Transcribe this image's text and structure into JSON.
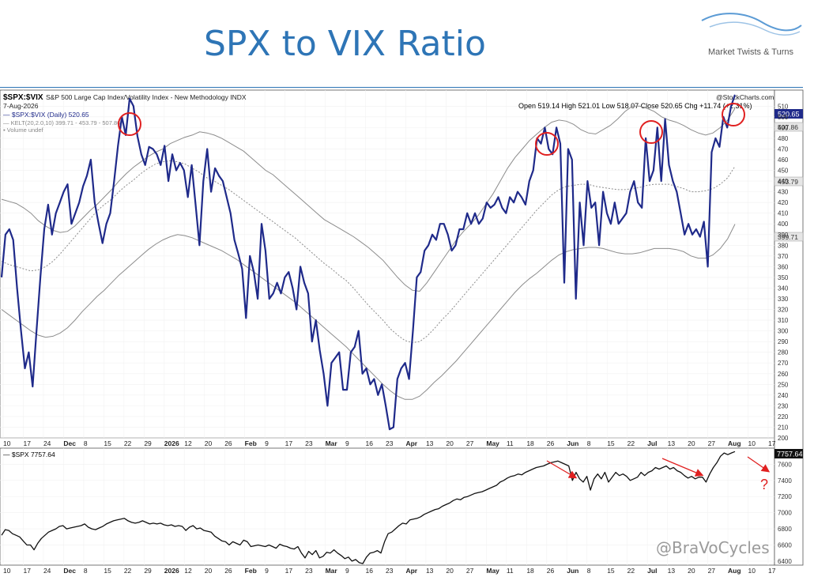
{
  "title": "SPX to VIX Ratio",
  "brand": "Market Twists & Turns",
  "watermark": "@BraVoCycles",
  "stockcharts": "@StockCharts.com",
  "top_panel": {
    "symbol": "$SPX:$VIX",
    "description": "S&P 500 Large Cap Index/Volatility Index - New Methodology INDX",
    "date": "7-Aug-2026",
    "ohlc": "Open 519.14  High 521.01  Low 518.07  Close 520.65  Chg +11.74 (+2.31%)",
    "legend": [
      "— $SPX:$VIX (Daily) 520.65",
      "— KELT(20,2.0,10) 399.71 - 453.79 - 507.86",
      "▪ Volume undef"
    ],
    "last_badge": "520.65",
    "upper_badge": "507.86",
    "mid_badge": "453.79",
    "lower_badge": "399.71",
    "y_ticks": [
      "200",
      "210",
      "220",
      "230",
      "240",
      "250",
      "260",
      "270",
      "280",
      "290",
      "300",
      "310",
      "320",
      "330",
      "340",
      "350",
      "360",
      "370",
      "380",
      "390",
      "400",
      "410",
      "420",
      "430",
      "440",
      "450",
      "460",
      "470",
      "480",
      "490",
      "500",
      "510"
    ]
  },
  "bottom_panel": {
    "legend": "— $SPX 7757.64",
    "last_badge": "7757.64",
    "y_ticks": [
      "6400",
      "6600",
      "6800",
      "7000",
      "7200",
      "7400",
      "7600"
    ],
    "question_mark": "?"
  },
  "x_ticks": [
    "10",
    "17",
    "24",
    "Dec",
    "8",
    "15",
    "22",
    "29",
    "2026",
    "12",
    "20",
    "26",
    "Feb",
    "9",
    "17",
    "23",
    "Mar",
    "9",
    "16",
    "23",
    "Apr",
    "13",
    "20",
    "27",
    "May",
    "11",
    "18",
    "26",
    "Jun",
    "8",
    "15",
    "22",
    "Jul",
    "13",
    "20",
    "27",
    "Aug",
    "10",
    "17"
  ],
  "x_ticks_bottom": [
    "10",
    "17",
    "24",
    "Dec",
    "8",
    "15",
    "22",
    "29",
    "2026",
    "12",
    "20",
    "26",
    "Feb",
    "9",
    "17",
    "23",
    "Mar",
    "9",
    "16",
    "23",
    "Apr",
    "13",
    "20",
    "27",
    "May",
    "11",
    "18",
    "26",
    "Jun",
    "8",
    "15",
    "22",
    "Jul",
    "13",
    "20",
    "27",
    "Aug",
    "10",
    "17"
  ],
  "colors": {
    "line": "#1f2a8a",
    "band": "#8c8c8c",
    "circle": "#e02020",
    "arrow": "#e02020",
    "title": "#2e75b6"
  },
  "chart_data": [
    {
      "type": "line",
      "title": "$SPX:$VIX",
      "ylim": [
        200,
        525
      ],
      "series": [
        {
          "name": "$SPX:$VIX (Daily)",
          "values": [
            350,
            390,
            395,
            385,
            340,
            300,
            265,
            280,
            248,
            300,
            350,
            395,
            418,
            390,
            410,
            420,
            430,
            437,
            400,
            410,
            420,
            435,
            445,
            460,
            420,
            400,
            382,
            400,
            410,
            440,
            473,
            500,
            483,
            517,
            510,
            482,
            465,
            455,
            472,
            470,
            465,
            455,
            473,
            440,
            465,
            450,
            457,
            450,
            425,
            455,
            418,
            380,
            440,
            470,
            430,
            452,
            445,
            440,
            425,
            410,
            385,
            372,
            358,
            312,
            370,
            355,
            330,
            400,
            375,
            330,
            335,
            345,
            335,
            350,
            355,
            340,
            320,
            360,
            345,
            335,
            290,
            310,
            282,
            260,
            230,
            270,
            275,
            280,
            245,
            245,
            280,
            285,
            300,
            260,
            265,
            250,
            255,
            240,
            250,
            230,
            208,
            210,
            255,
            265,
            270,
            255,
            300,
            350,
            355,
            375,
            380,
            390,
            385,
            400,
            400,
            390,
            375,
            380,
            395,
            395,
            410,
            400,
            410,
            400,
            405,
            420,
            415,
            418,
            425,
            415,
            410,
            425,
            420,
            430,
            425,
            418,
            440,
            450,
            480,
            475,
            490,
            470,
            465,
            490,
            475,
            345,
            470,
            460,
            330,
            420,
            380,
            440,
            415,
            420,
            380,
            430,
            410,
            400,
            420,
            400,
            405,
            410,
            430,
            440,
            420,
            415,
            480,
            440,
            450,
            490,
            440,
            498,
            455,
            440,
            430,
            410,
            390,
            400,
            390,
            395,
            388,
            402,
            360,
            467,
            480,
            472,
            500,
            490,
            510,
            520.65
          ]
        },
        {
          "name": "KELT upper",
          "values": [
            423,
            421,
            419,
            415,
            410,
            403,
            398,
            394,
            392,
            393,
            398,
            405,
            412,
            418,
            425,
            432,
            440,
            447,
            453,
            458,
            463,
            467,
            470,
            475,
            478,
            481,
            483,
            486,
            485,
            483,
            480,
            476,
            472,
            468,
            462,
            456,
            450,
            446,
            440,
            434,
            428,
            422,
            416,
            410,
            404,
            400,
            396,
            392,
            388,
            383,
            378,
            372,
            366,
            358,
            350,
            343,
            338,
            337,
            345,
            355,
            365,
            375,
            385,
            393,
            400,
            408,
            418,
            428,
            440,
            452,
            462,
            470,
            478,
            484,
            490,
            495,
            497,
            496,
            493,
            488,
            485,
            484,
            488,
            492,
            498,
            505,
            510,
            510,
            508,
            505,
            500,
            497,
            495,
            492,
            488,
            485,
            483,
            485,
            490,
            497,
            507.86
          ]
        },
        {
          "name": "KELT middle",
          "values": [
            365,
            362,
            360,
            358,
            356,
            357,
            360,
            365,
            372,
            380,
            388,
            396,
            404,
            412,
            418,
            423,
            430,
            436,
            441,
            447,
            452,
            456,
            458,
            459,
            458,
            456,
            452,
            448,
            443,
            440,
            436,
            432,
            427,
            422,
            417,
            412,
            407,
            402,
            397,
            392,
            387,
            381,
            375,
            369,
            363,
            358,
            352,
            347,
            340,
            332,
            324,
            317,
            310,
            302,
            296,
            291,
            289,
            290,
            295,
            302,
            310,
            317,
            325,
            333,
            341,
            349,
            357,
            365,
            373,
            381,
            389,
            397,
            405,
            413,
            420,
            427,
            432,
            435,
            436,
            437,
            437,
            435,
            434,
            433,
            432,
            432,
            433,
            434,
            436,
            437,
            437,
            437,
            435,
            433,
            430,
            430,
            431,
            433,
            437,
            443,
            453.79
          ]
        },
        {
          "name": "KELT lower",
          "values": [
            320,
            315,
            310,
            305,
            300,
            296,
            294,
            295,
            298,
            303,
            310,
            318,
            325,
            332,
            338,
            345,
            352,
            358,
            364,
            370,
            376,
            381,
            385,
            388,
            390,
            389,
            387,
            384,
            381,
            378,
            375,
            371,
            367,
            362,
            357,
            352,
            347,
            342,
            337,
            332,
            327,
            321,
            315,
            309,
            303,
            297,
            291,
            285,
            278,
            271,
            264,
            257,
            250,
            244,
            239,
            236,
            236,
            239,
            245,
            252,
            258,
            265,
            272,
            280,
            288,
            296,
            304,
            312,
            320,
            328,
            336,
            343,
            349,
            354,
            360,
            366,
            371,
            374,
            376,
            377,
            378,
            378,
            377,
            375,
            373,
            372,
            372,
            373,
            375,
            377,
            377,
            377,
            376,
            374,
            370,
            368,
            368,
            371,
            377,
            386,
            399.71
          ]
        }
      ]
    },
    {
      "type": "line",
      "title": "$SPX",
      "ylim": [
        6350,
        7800
      ],
      "series": [
        {
          "name": "$SPX",
          "values": [
            6720,
            6790,
            6780,
            6740,
            6720,
            6700,
            6650,
            6600,
            6600,
            6540,
            6620,
            6680,
            6720,
            6760,
            6780,
            6800,
            6830,
            6840,
            6800,
            6810,
            6820,
            6830,
            6840,
            6860,
            6820,
            6800,
            6790,
            6810,
            6830,
            6860,
            6880,
            6900,
            6910,
            6920,
            6930,
            6900,
            6880,
            6870,
            6880,
            6900,
            6880,
            6860,
            6870,
            6860,
            6870,
            6850,
            6840,
            6850,
            6830,
            6840,
            6830,
            6780,
            6820,
            6840,
            6800,
            6810,
            6780,
            6770,
            6760,
            6710,
            6680,
            6650,
            6640,
            6600,
            6640,
            6620,
            6600,
            6660,
            6640,
            6580,
            6590,
            6600,
            6590,
            6580,
            6600,
            6580,
            6560,
            6610,
            6590,
            6580,
            6560,
            6550,
            6580,
            6500,
            6440,
            6520,
            6480,
            6530,
            6440,
            6460,
            6510,
            6500,
            6540,
            6500,
            6470,
            6430,
            6450,
            6400,
            6420,
            6380,
            6370,
            6450,
            6500,
            6510,
            6530,
            6500,
            6640,
            6740,
            6760,
            6800,
            6840,
            6870,
            6860,
            6910,
            6920,
            6930,
            6950,
            6980,
            7000,
            7020,
            7040,
            7050,
            7080,
            7100,
            7120,
            7150,
            7170,
            7160,
            7190,
            7200,
            7220,
            7240,
            7250,
            7260,
            7280,
            7300,
            7320,
            7340,
            7380,
            7400,
            7430,
            7450,
            7460,
            7480,
            7470,
            7500,
            7520,
            7540,
            7560,
            7570,
            7580,
            7600,
            7620,
            7630,
            7640,
            7620,
            7600,
            7580,
            7400,
            7500,
            7420,
            7380,
            7450,
            7280,
            7420,
            7480,
            7420,
            7500,
            7380,
            7440,
            7500,
            7460,
            7480,
            7450,
            7400,
            7420,
            7440,
            7500,
            7460,
            7500,
            7520,
            7560,
            7540,
            7560,
            7580,
            7540,
            7560,
            7520,
            7500,
            7460,
            7430,
            7450,
            7420,
            7440,
            7440,
            7380,
            7480,
            7560,
            7620,
            7700,
            7740,
            7720,
            7740,
            7757.64
          ]
        }
      ]
    }
  ]
}
